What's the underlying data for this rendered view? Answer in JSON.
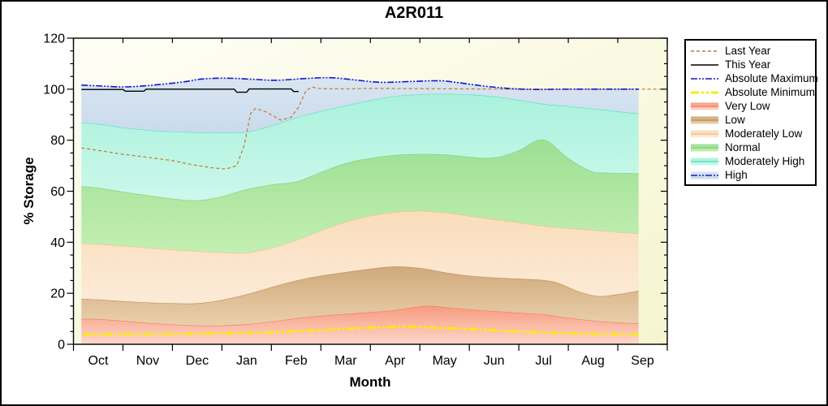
{
  "title": "A2R011",
  "chart_data": {
    "type": "area",
    "title": "A2R011",
    "xlabel": "Month",
    "ylabel": "% Storage",
    "x_categories": [
      "Oct",
      "Nov",
      "Dec",
      "Jan",
      "Feb",
      "Mar",
      "Apr",
      "May",
      "Jun",
      "Jul",
      "Aug",
      "Sep"
    ],
    "ylim": [
      0,
      120
    ],
    "y_major_step": 20,
    "y_minor_step": 5,
    "x_unit": "months_from_Oct_start",
    "plot_background": {
      "from": "#fefef6",
      "to": "#f5f5d0"
    },
    "frame_color": "#000000",
    "bands": [
      {
        "key": "very_low",
        "label": "Very Low",
        "fill_top": "#f79a7e",
        "fill_bottom": "#fdd8cb",
        "edge": "#ef8360",
        "points": [
          [
            0.16,
            10.0
          ],
          [
            0.5,
            9.9
          ],
          [
            1.0,
            9.2
          ],
          [
            1.5,
            8.4
          ],
          [
            2.0,
            7.8
          ],
          [
            2.5,
            7.4
          ],
          [
            3.0,
            7.4
          ],
          [
            3.5,
            7.9
          ],
          [
            4.0,
            8.9
          ],
          [
            4.5,
            10.2
          ],
          [
            5.0,
            11.2
          ],
          [
            5.5,
            11.9
          ],
          [
            6.0,
            12.6
          ],
          [
            6.5,
            13.4
          ],
          [
            6.9,
            14.6
          ],
          [
            7.2,
            15.1
          ],
          [
            7.7,
            14.2
          ],
          [
            8.5,
            13.0
          ],
          [
            9.5,
            11.7
          ],
          [
            10.0,
            10.4
          ],
          [
            10.5,
            9.3
          ],
          [
            11.0,
            8.5
          ],
          [
            11.42,
            8.2
          ]
        ]
      },
      {
        "key": "low",
        "label": "Low",
        "fill_top": "#cfa97a",
        "fill_bottom": "#ead0ac",
        "edge": "#c29058",
        "points": [
          [
            0.16,
            17.8
          ],
          [
            0.5,
            17.6
          ],
          [
            1.0,
            16.9
          ],
          [
            1.5,
            16.4
          ],
          [
            2.0,
            16.1
          ],
          [
            2.5,
            16.1
          ],
          [
            3.0,
            17.4
          ],
          [
            3.5,
            19.6
          ],
          [
            4.0,
            22.4
          ],
          [
            4.5,
            25.0
          ],
          [
            5.0,
            26.9
          ],
          [
            5.5,
            28.3
          ],
          [
            6.0,
            29.6
          ],
          [
            6.5,
            30.5
          ],
          [
            7.0,
            29.9
          ],
          [
            7.5,
            28.2
          ],
          [
            8.0,
            26.9
          ],
          [
            8.5,
            26.2
          ],
          [
            9.0,
            25.7
          ],
          [
            9.5,
            25.2
          ],
          [
            9.8,
            24.0
          ],
          [
            10.2,
            20.8
          ],
          [
            10.6,
            18.9
          ],
          [
            11.0,
            19.6
          ],
          [
            11.42,
            21.0
          ]
        ]
      },
      {
        "key": "moderately_low",
        "label": "Moderately Low",
        "fill_top": "#faddba",
        "fill_bottom": "#fcebd9",
        "edge": "#eec392",
        "points": [
          [
            0.16,
            39.6
          ],
          [
            0.5,
            39.3
          ],
          [
            1.0,
            38.6
          ],
          [
            1.5,
            37.9
          ],
          [
            2.0,
            37.1
          ],
          [
            2.5,
            36.5
          ],
          [
            3.0,
            36.0
          ],
          [
            3.5,
            35.9
          ],
          [
            4.0,
            37.8
          ],
          [
            4.5,
            40.8
          ],
          [
            5.0,
            44.6
          ],
          [
            5.5,
            48.0
          ],
          [
            6.0,
            50.4
          ],
          [
            6.5,
            51.8
          ],
          [
            7.0,
            52.3
          ],
          [
            7.5,
            51.6
          ],
          [
            8.0,
            50.3
          ],
          [
            8.5,
            49.0
          ],
          [
            9.0,
            47.7
          ],
          [
            9.5,
            46.4
          ],
          [
            10.0,
            45.5
          ],
          [
            10.5,
            44.8
          ],
          [
            11.0,
            44.0
          ],
          [
            11.42,
            43.4
          ]
        ]
      },
      {
        "key": "normal",
        "label": "Normal",
        "fill_top": "#9cdf93",
        "fill_bottom": "#c4efb2",
        "edge": "#7fd47f",
        "points": [
          [
            0.16,
            62.0
          ],
          [
            0.5,
            61.4
          ],
          [
            1.0,
            59.8
          ],
          [
            1.5,
            58.4
          ],
          [
            2.0,
            57.1
          ],
          [
            2.5,
            56.4
          ],
          [
            3.0,
            58.0
          ],
          [
            3.5,
            60.8
          ],
          [
            4.0,
            62.6
          ],
          [
            4.5,
            63.8
          ],
          [
            5.0,
            67.5
          ],
          [
            5.5,
            71.0
          ],
          [
            6.0,
            73.0
          ],
          [
            6.5,
            74.2
          ],
          [
            7.0,
            74.6
          ],
          [
            7.5,
            74.4
          ],
          [
            8.0,
            73.5
          ],
          [
            8.5,
            73.2
          ],
          [
            9.0,
            76.0
          ],
          [
            9.35,
            79.8
          ],
          [
            9.6,
            79.5
          ],
          [
            10.0,
            73.0
          ],
          [
            10.45,
            68.0
          ],
          [
            10.8,
            67.2
          ],
          [
            11.42,
            67.0
          ]
        ]
      },
      {
        "key": "moderately_high",
        "label": "Moderately High",
        "fill_top": "#a9f2dc",
        "fill_bottom": "#cdf8eb",
        "edge": "#59e2c0",
        "points": [
          [
            0.16,
            86.9
          ],
          [
            0.5,
            86.4
          ],
          [
            1.0,
            85.0
          ],
          [
            1.5,
            84.0
          ],
          [
            2.0,
            83.4
          ],
          [
            2.5,
            83.1
          ],
          [
            3.0,
            83.0
          ],
          [
            3.5,
            83.2
          ],
          [
            4.0,
            85.7
          ],
          [
            4.5,
            88.9
          ],
          [
            5.0,
            91.4
          ],
          [
            5.5,
            93.6
          ],
          [
            6.0,
            95.7
          ],
          [
            6.5,
            97.3
          ],
          [
            7.0,
            98.0
          ],
          [
            7.5,
            98.2
          ],
          [
            8.0,
            97.9
          ],
          [
            8.5,
            97.2
          ],
          [
            9.0,
            95.8
          ],
          [
            9.5,
            94.2
          ],
          [
            10.0,
            93.3
          ],
          [
            10.5,
            92.4
          ],
          [
            11.0,
            91.3
          ],
          [
            11.42,
            90.4
          ]
        ]
      },
      {
        "key": "high",
        "label": "High",
        "fill_top": "#d9e5f2",
        "fill_bottom": "#c9dbec",
        "edge": null,
        "top_ref": "absolute_maximum",
        "points": []
      }
    ],
    "lines": [
      {
        "key": "absolute_minimum",
        "label": "Absolute Minimum",
        "color": "#f8ee00",
        "width": 3,
        "dash": "10 3 3 3 3 3",
        "smooth": true,
        "points": [
          [
            0.2,
            3.8
          ],
          [
            1.0,
            3.9
          ],
          [
            2.0,
            4.1
          ],
          [
            3.0,
            4.3
          ],
          [
            4.0,
            4.7
          ],
          [
            5.0,
            5.6
          ],
          [
            6.0,
            6.5
          ],
          [
            6.7,
            6.9
          ],
          [
            7.4,
            6.4
          ],
          [
            8.2,
            5.8
          ],
          [
            9.0,
            5.0
          ],
          [
            9.9,
            4.4
          ],
          [
            10.8,
            4.0
          ],
          [
            11.42,
            3.8
          ]
        ]
      },
      {
        "key": "last_year",
        "label": "Last Year",
        "color": "#c2782e",
        "width": 1.2,
        "dash": "4 3",
        "smooth": false,
        "points": [
          [
            0.16,
            77.0
          ],
          [
            0.5,
            76.0
          ],
          [
            1.0,
            74.5
          ],
          [
            1.5,
            73.3
          ],
          [
            2.0,
            72.0
          ],
          [
            2.4,
            70.4
          ],
          [
            2.8,
            69.2
          ],
          [
            3.08,
            68.7
          ],
          [
            3.3,
            70.0
          ],
          [
            3.45,
            78.0
          ],
          [
            3.58,
            90.5
          ],
          [
            3.68,
            92.5
          ],
          [
            3.9,
            91.0
          ],
          [
            4.19,
            87.9
          ],
          [
            4.4,
            89.0
          ],
          [
            4.55,
            93.0
          ],
          [
            4.7,
            99.5
          ],
          [
            4.82,
            100.8
          ],
          [
            5.0,
            100.2
          ],
          [
            5.5,
            100.1
          ],
          [
            6.0,
            100.3
          ],
          [
            7.0,
            100.2
          ],
          [
            8.0,
            100.1
          ],
          [
            9.0,
            100.0
          ],
          [
            10.0,
            100.0
          ],
          [
            11.0,
            100.0
          ],
          [
            11.93,
            100.0
          ]
        ]
      },
      {
        "key": "this_year",
        "label": "This Year",
        "color": "#000000",
        "width": 1.4,
        "dash": null,
        "smooth": false,
        "points": [
          [
            0.16,
            99.9
          ],
          [
            1.0,
            99.9
          ],
          [
            1.05,
            99.2
          ],
          [
            1.42,
            99.2
          ],
          [
            1.47,
            100.0
          ],
          [
            3.25,
            100.0
          ],
          [
            3.3,
            98.8
          ],
          [
            3.5,
            98.8
          ],
          [
            3.55,
            100.1
          ],
          [
            4.4,
            100.1
          ],
          [
            4.45,
            99.1
          ],
          [
            4.55,
            99.1
          ]
        ]
      },
      {
        "key": "absolute_maximum",
        "label": "Absolute Maximum",
        "color": "#1414cd",
        "width": 1.6,
        "dash": "8 2 2 2 2 2",
        "smooth": true,
        "points": [
          [
            0.16,
            101.6
          ],
          [
            0.5,
            101.3
          ],
          [
            1.0,
            100.9
          ],
          [
            1.5,
            101.4
          ],
          [
            2.2,
            102.8
          ],
          [
            2.6,
            104.0
          ],
          [
            3.1,
            104.3
          ],
          [
            3.6,
            103.9
          ],
          [
            4.1,
            103.5
          ],
          [
            4.7,
            104.2
          ],
          [
            5.2,
            104.5
          ],
          [
            5.7,
            103.6
          ],
          [
            6.2,
            102.7
          ],
          [
            6.8,
            103.0
          ],
          [
            7.4,
            103.3
          ],
          [
            7.8,
            102.5
          ],
          [
            8.3,
            101.2
          ],
          [
            8.8,
            100.3
          ],
          [
            9.3,
            99.9
          ],
          [
            10.0,
            100.0
          ],
          [
            11.0,
            100.0
          ],
          [
            11.42,
            100.0
          ]
        ]
      }
    ]
  },
  "legend": {
    "entries": [
      {
        "key": "last_year",
        "label": "Last Year",
        "marker": "line"
      },
      {
        "key": "this_year",
        "label": "This Year",
        "marker": "line"
      },
      {
        "key": "absolute_maximum",
        "label": "Absolute Maximum",
        "marker": "line"
      },
      {
        "key": "absolute_minimum",
        "label": "Absolute Minimum",
        "marker": "line"
      },
      {
        "key": "very_low",
        "label": "Very Low",
        "marker": "band"
      },
      {
        "key": "low",
        "label": "Low",
        "marker": "band"
      },
      {
        "key": "moderately_low",
        "label": "Moderately Low",
        "marker": "band"
      },
      {
        "key": "normal",
        "label": "Normal",
        "marker": "band"
      },
      {
        "key": "moderately_high",
        "label": "Moderately High",
        "marker": "band"
      },
      {
        "key": "high",
        "label": "High",
        "marker": "band"
      }
    ]
  }
}
